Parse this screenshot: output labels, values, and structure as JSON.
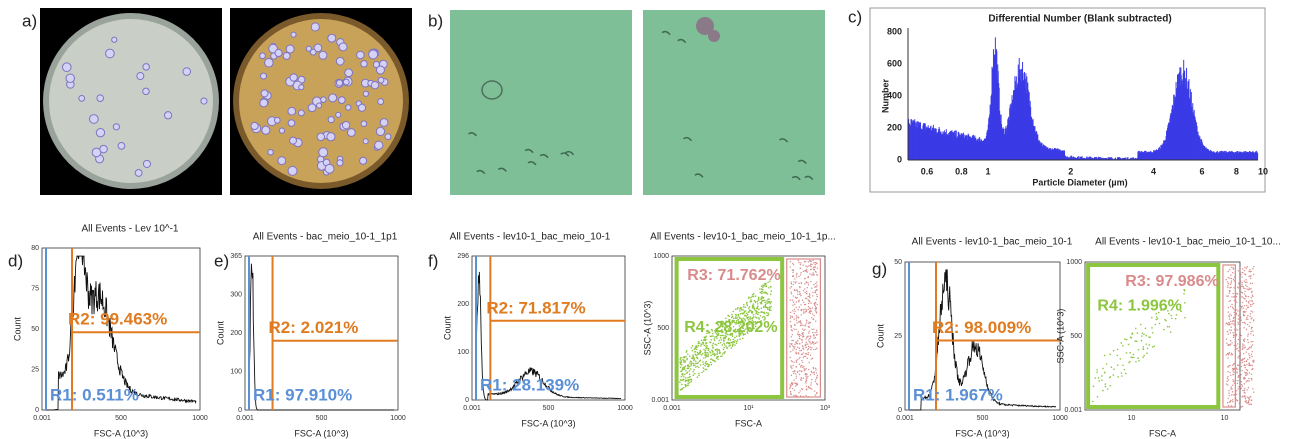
{
  "panel_labels": [
    "a)",
    "b)",
    "c)",
    "d)",
    "e)",
    "f)",
    "g)"
  ],
  "size_distribution": {
    "title": "Differential Number  (Blank subtracted)",
    "y_label": "Number",
    "x_label": "Particle Diameter (µm)",
    "y_ticks": [
      "0",
      "200",
      "400",
      "600",
      "800"
    ],
    "x_ticks": [
      "0.6",
      "0.8",
      "1",
      "2",
      "4",
      "6",
      "8",
      "10"
    ]
  },
  "flow_plots": [
    {
      "title": "All Events - Lev 10^-1",
      "y_label": "Count",
      "x_label": "FSC-A (10^3)",
      "y_ticks": [
        "0",
        "25",
        "50",
        "75",
        "80"
      ],
      "x_ticks": [
        "0.001",
        "500",
        "1000"
      ],
      "gates": [
        "R2: 99.463%",
        "R1: 0.511%"
      ]
    },
    {
      "title": "All Events - bac_meio_10-1_1p1",
      "y_label": "Count",
      "x_label": "FSC-A (10^3)",
      "y_ticks": [
        "0",
        "100",
        "200",
        "300",
        "365"
      ],
      "x_ticks": [
        "0.001",
        "500",
        "1000"
      ],
      "gates": [
        "R2: 2.021%",
        "R1: 97.910%"
      ]
    },
    {
      "title": "All Events  -  lev10-1_bac_meio_10-1",
      "y_label": "Count",
      "x_label": "FSC-A (10^3)",
      "y_ticks": [
        "0",
        "100",
        "200",
        "296"
      ],
      "x_ticks": [
        "0.001",
        "500",
        "1000"
      ],
      "gates": [
        "R2: 71.817%",
        "R1: 28.139%"
      ]
    },
    {
      "title": "All Events  -  lev10-1_bac_meio_10-1_1p...",
      "y_label": "SSC-A (10^3)",
      "x_label": "FSC-A",
      "y_ticks": [
        "0.001",
        "500",
        "1000"
      ],
      "x_ticks": [
        "0.001",
        "10¹",
        "10³"
      ],
      "gates": [
        "R3: 71.762%",
        "R4: 28.202%"
      ]
    },
    {
      "title": "All Events  -  lev10-1_bac_meio_10-1",
      "y_label": "Count",
      "x_label": "FSC-A (10^3)",
      "y_ticks": [
        "0",
        "25",
        "50"
      ],
      "x_ticks": [
        "0.001",
        "500",
        "1000"
      ],
      "gates": [
        "R2: 98.009%",
        "R1: 1.967%"
      ]
    },
    {
      "title": "All Events  -  lev10-1_bac_meio_10-1_10...",
      "y_label": "SSC-A (10^3)",
      "x_label": "FSC-A",
      "y_ticks": [
        "0.001",
        "500",
        "1000"
      ],
      "x_ticks": [
        "10",
        "10"
      ],
      "gates": [
        "R3: 97.986%",
        "R4: 1.996%"
      ]
    }
  ]
}
